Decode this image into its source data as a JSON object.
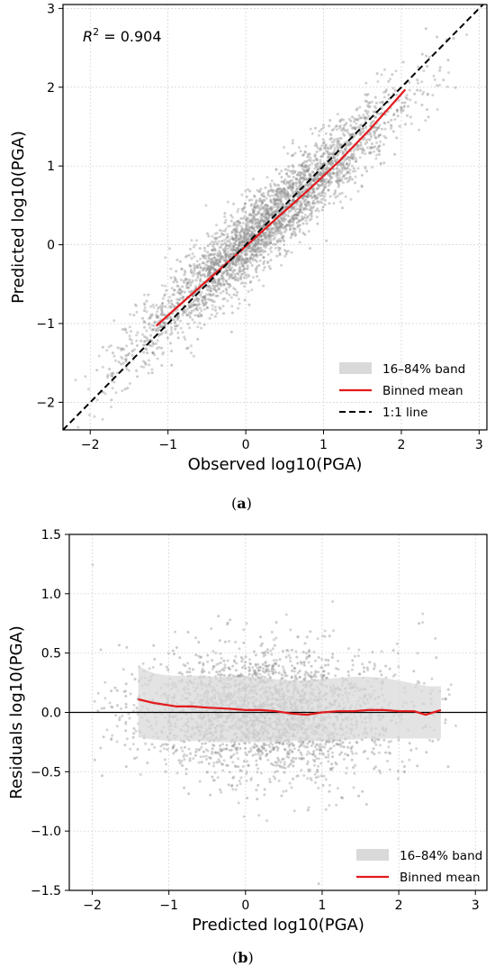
{
  "chart_data": [
    {
      "type": "scatter",
      "panel_label": "a",
      "xlabel": "Observed log10(PGA)",
      "ylabel": "Predicted log10(PGA)",
      "xlim": [
        -2.35,
        3.1
      ],
      "ylim": [
        -2.35,
        3.05
      ],
      "xticks": [
        -2,
        -1,
        0,
        1,
        2,
        3
      ],
      "yticks": [
        -2,
        -1,
        0,
        1,
        2,
        3
      ],
      "annotation": {
        "prefix": "R",
        "exponent": "2",
        "text": " = 0.904"
      },
      "grid": true,
      "legend_placement": "bottom-right",
      "legend": [
        "16–84% band",
        "Binned mean",
        "1:1 line"
      ],
      "scatter_cloud": {
        "slope": 0.9,
        "intercept": 0.02,
        "x_range": [
          -2.2,
          3.0
        ],
        "spread_sd": 0.25,
        "color": "#a0a0a0"
      },
      "series": [
        {
          "name": "Binned mean",
          "color": "#e31a1c",
          "x": [
            -1.15,
            -0.8,
            -0.4,
            0.0,
            0.4,
            0.8,
            1.2,
            1.6,
            2.05
          ],
          "y": [
            -1.03,
            -0.72,
            -0.37,
            -0.02,
            0.34,
            0.69,
            1.06,
            1.47,
            1.97
          ]
        },
        {
          "name": "1:1 line",
          "color": "#000000",
          "style": "dashed",
          "x": [
            -2.35,
            3.05
          ],
          "y": [
            -2.35,
            3.05
          ]
        }
      ]
    },
    {
      "type": "scatter",
      "panel_label": "b",
      "xlabel": "Predicted log10(PGA)",
      "ylabel": "Residuals log10(PGA)",
      "xlim": [
        -2.3,
        3.15
      ],
      "ylim": [
        -1.5,
        1.5
      ],
      "xticks": [
        -2,
        -1,
        0,
        1,
        2,
        3
      ],
      "yticks": [
        -1.5,
        -1.0,
        -0.5,
        0.0,
        0.5,
        1.0,
        1.5
      ],
      "ytick_labels": [
        "−1.5",
        "−1.0",
        "−0.5",
        "0.0",
        "0.5",
        "1.0",
        "1.5"
      ],
      "grid": true,
      "legend_placement": "bottom-right",
      "legend": [
        "16–84% band",
        "Binned mean"
      ],
      "zero_line": 0.0,
      "scatter_cloud": {
        "x_range": [
          -2.0,
          2.8
        ],
        "center": -0.1,
        "spread_sd": 0.27,
        "color": "#a0a0a0"
      },
      "band": {
        "x": [
          -1.4,
          -1.2,
          -1.0,
          -0.8,
          -0.6,
          -0.4,
          -0.2,
          0.0,
          0.2,
          0.4,
          0.6,
          0.8,
          1.0,
          1.2,
          1.4,
          1.6,
          1.8,
          2.0,
          2.2,
          2.4,
          2.55
        ],
        "lower": [
          -0.21,
          -0.23,
          -0.24,
          -0.24,
          -0.24,
          -0.25,
          -0.25,
          -0.25,
          -0.25,
          -0.25,
          -0.24,
          -0.24,
          -0.24,
          -0.23,
          -0.23,
          -0.22,
          -0.22,
          -0.22,
          -0.22,
          -0.22,
          -0.22
        ],
        "upper": [
          0.39,
          0.33,
          0.31,
          0.31,
          0.31,
          0.3,
          0.3,
          0.3,
          0.29,
          0.28,
          0.27,
          0.27,
          0.28,
          0.29,
          0.3,
          0.3,
          0.29,
          0.27,
          0.24,
          0.22,
          0.22
        ]
      },
      "series": [
        {
          "name": "Binned mean",
          "color": "#e31a1c",
          "x": [
            -1.4,
            -1.2,
            -0.9,
            -0.7,
            -0.5,
            -0.2,
            0.0,
            0.2,
            0.4,
            0.6,
            0.8,
            1.0,
            1.2,
            1.4,
            1.6,
            1.8,
            2.0,
            2.2,
            2.35,
            2.55
          ],
          "y": [
            0.11,
            0.08,
            0.05,
            0.05,
            0.04,
            0.03,
            0.02,
            0.02,
            0.01,
            -0.01,
            -0.02,
            0.0,
            0.01,
            0.01,
            0.02,
            0.02,
            0.01,
            0.01,
            -0.02,
            0.02
          ]
        }
      ]
    }
  ]
}
